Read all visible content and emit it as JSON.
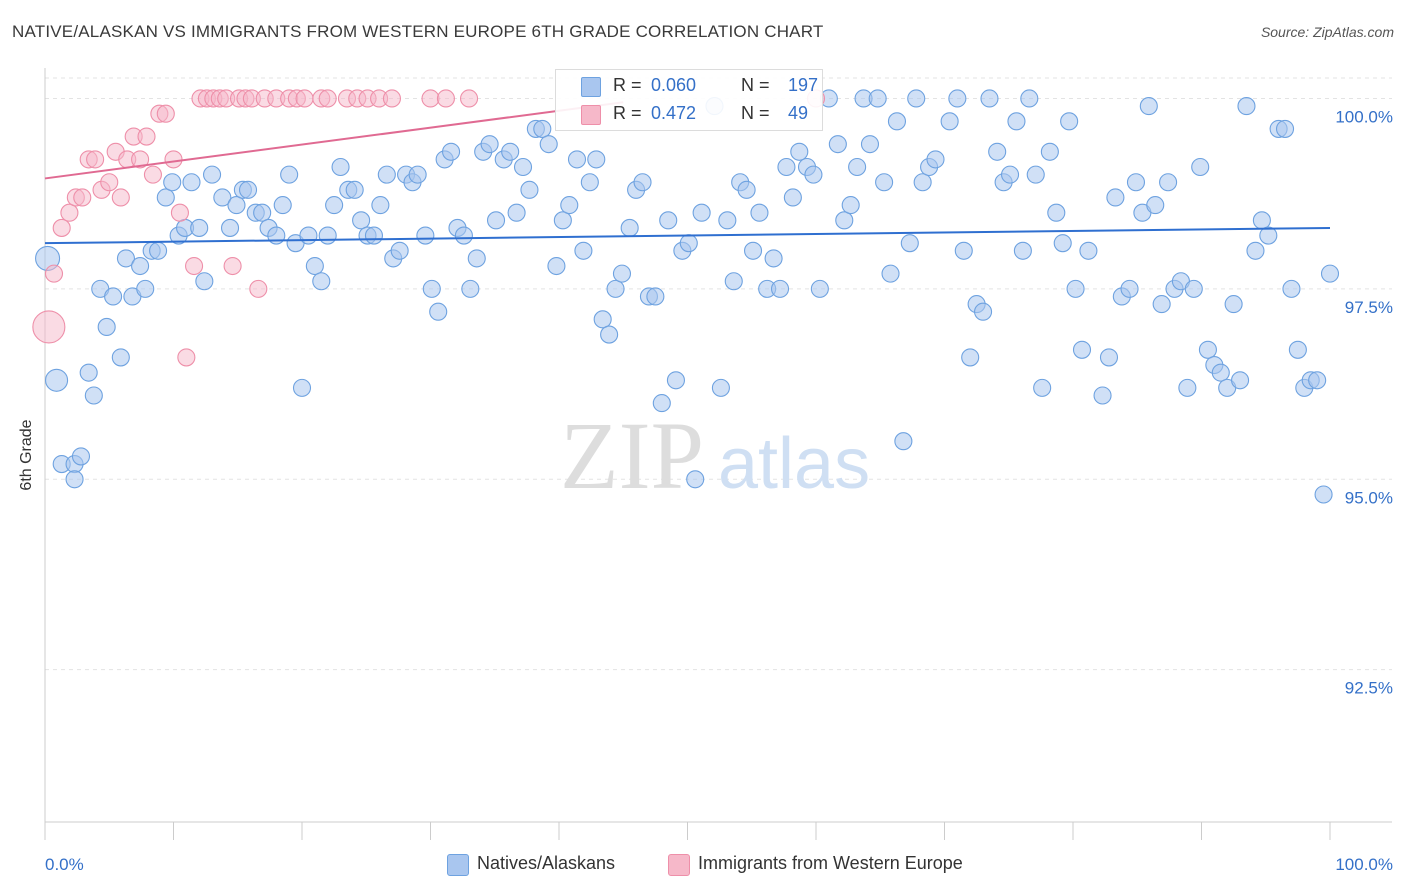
{
  "header": {
    "title": "NATIVE/ALASKAN VS IMMIGRANTS FROM WESTERN EUROPE 6TH GRADE CORRELATION CHART",
    "source": "Source: ZipAtlas.com"
  },
  "watermark": {
    "zip": "ZIP",
    "atlas": "atlas"
  },
  "legend_top": {
    "rows": [
      {
        "r_label": "R =",
        "r_value": "0.060",
        "n_label": "N =",
        "n_value": "197",
        "color": "#a9c6ef"
      },
      {
        "r_label": "R =",
        "r_value": "0.472",
        "n_label": "N =",
        "n_value": "49",
        "color": "#f6b8c9"
      }
    ]
  },
  "chart_data": {
    "type": "scatter",
    "title": "NATIVE/ALASKAN VS IMMIGRANTS FROM WESTERN EUROPE 6TH GRADE CORRELATION CHART",
    "xlabel": "",
    "ylabel": "6th Grade",
    "xlim": [
      0,
      100
    ],
    "ylim": [
      90.5,
      100.4
    ],
    "x_tick_labels": [
      "0.0%",
      "100.0%"
    ],
    "y_ticks": [
      92.5,
      95.0,
      97.5,
      100.0
    ],
    "y_tick_labels": [
      "92.5%",
      "95.0%",
      "97.5%",
      "100.0%"
    ],
    "grid": true,
    "legend_position": "bottom",
    "series": [
      {
        "name": "Natives/Alaskans",
        "color": "#6ea2e0",
        "fill": "#a9c6ef",
        "trend": {
          "x": [
            0,
            100
          ],
          "y": [
            98.1,
            98.3
          ],
          "color": "#2f6fd0"
        },
        "points": [
          [
            0.2,
            97.9
          ],
          [
            0.9,
            96.3
          ],
          [
            1.3,
            95.2
          ],
          [
            2.3,
            95.2
          ],
          [
            2.8,
            95.3
          ],
          [
            2.3,
            95.0
          ],
          [
            3.4,
            96.4
          ],
          [
            3.8,
            96.1
          ],
          [
            4.3,
            97.5
          ],
          [
            4.8,
            97.0
          ],
          [
            5.3,
            97.4
          ],
          [
            5.9,
            96.6
          ],
          [
            6.3,
            97.9
          ],
          [
            6.8,
            97.4
          ],
          [
            7.4,
            97.8
          ],
          [
            7.8,
            97.5
          ],
          [
            8.3,
            98.0
          ],
          [
            8.8,
            98.0
          ],
          [
            9.4,
            98.7
          ],
          [
            9.9,
            98.9
          ],
          [
            10.4,
            98.2
          ],
          [
            10.9,
            98.3
          ],
          [
            11.4,
            98.9
          ],
          [
            12.0,
            98.3
          ],
          [
            12.4,
            97.6
          ],
          [
            13.0,
            99.0
          ],
          [
            13.8,
            98.7
          ],
          [
            14.4,
            98.3
          ],
          [
            14.9,
            98.6
          ],
          [
            15.4,
            98.8
          ],
          [
            15.8,
            98.8
          ],
          [
            16.4,
            98.5
          ],
          [
            16.9,
            98.5
          ],
          [
            17.4,
            98.3
          ],
          [
            18.0,
            98.2
          ],
          [
            18.5,
            98.6
          ],
          [
            19.0,
            99.0
          ],
          [
            19.5,
            98.1
          ],
          [
            20.0,
            96.2
          ],
          [
            20.5,
            98.2
          ],
          [
            21.0,
            97.8
          ],
          [
            21.5,
            97.6
          ],
          [
            22.0,
            98.2
          ],
          [
            22.5,
            98.6
          ],
          [
            23.0,
            99.1
          ],
          [
            23.6,
            98.8
          ],
          [
            24.1,
            98.8
          ],
          [
            24.6,
            98.4
          ],
          [
            25.1,
            98.2
          ],
          [
            25.6,
            98.2
          ],
          [
            26.1,
            98.6
          ],
          [
            26.6,
            99.0
          ],
          [
            27.1,
            97.9
          ],
          [
            27.6,
            98.0
          ],
          [
            28.1,
            99.0
          ],
          [
            28.6,
            98.9
          ],
          [
            29.0,
            99.0
          ],
          [
            29.6,
            98.2
          ],
          [
            30.1,
            97.5
          ],
          [
            30.6,
            97.2
          ],
          [
            31.1,
            99.2
          ],
          [
            31.6,
            99.3
          ],
          [
            32.1,
            98.3
          ],
          [
            32.6,
            98.2
          ],
          [
            33.1,
            97.5
          ],
          [
            33.6,
            97.9
          ],
          [
            34.1,
            99.3
          ],
          [
            34.6,
            99.4
          ],
          [
            35.1,
            98.4
          ],
          [
            35.7,
            99.2
          ],
          [
            36.2,
            99.3
          ],
          [
            36.7,
            98.5
          ],
          [
            37.2,
            99.1
          ],
          [
            37.7,
            98.8
          ],
          [
            38.2,
            99.6
          ],
          [
            38.7,
            99.6
          ],
          [
            39.2,
            99.4
          ],
          [
            39.8,
            97.8
          ],
          [
            40.3,
            98.4
          ],
          [
            40.8,
            98.6
          ],
          [
            41.4,
            99.2
          ],
          [
            41.9,
            98.0
          ],
          [
            42.4,
            98.9
          ],
          [
            42.9,
            99.2
          ],
          [
            43.4,
            97.1
          ],
          [
            43.9,
            96.9
          ],
          [
            44.4,
            97.5
          ],
          [
            44.9,
            97.7
          ],
          [
            45.5,
            98.3
          ],
          [
            46.0,
            98.8
          ],
          [
            46.5,
            98.9
          ],
          [
            47.0,
            97.4
          ],
          [
            47.5,
            97.4
          ],
          [
            48.0,
            96.0
          ],
          [
            48.5,
            98.4
          ],
          [
            49.1,
            96.3
          ],
          [
            49.6,
            98.0
          ],
          [
            50.1,
            98.1
          ],
          [
            50.6,
            95.0
          ],
          [
            51.1,
            98.5
          ],
          [
            52.1,
            99.9
          ],
          [
            52.6,
            96.2
          ],
          [
            53.1,
            98.4
          ],
          [
            53.6,
            97.6
          ],
          [
            54.1,
            98.9
          ],
          [
            54.6,
            98.8
          ],
          [
            55.1,
            98.0
          ],
          [
            55.6,
            98.5
          ],
          [
            56.2,
            97.5
          ],
          [
            56.7,
            97.9
          ],
          [
            57.2,
            97.5
          ],
          [
            57.7,
            99.1
          ],
          [
            58.2,
            98.7
          ],
          [
            58.7,
            99.3
          ],
          [
            59.3,
            99.1
          ],
          [
            59.8,
            99.0
          ],
          [
            60.3,
            97.5
          ],
          [
            61.0,
            100.0
          ],
          [
            61.7,
            99.4
          ],
          [
            62.2,
            98.4
          ],
          [
            62.7,
            98.6
          ],
          [
            63.2,
            99.1
          ],
          [
            63.7,
            100.0
          ],
          [
            64.2,
            99.4
          ],
          [
            64.8,
            100.0
          ],
          [
            65.3,
            98.9
          ],
          [
            65.8,
            97.7
          ],
          [
            66.3,
            99.7
          ],
          [
            66.8,
            95.5
          ],
          [
            67.3,
            98.1
          ],
          [
            67.8,
            100.0
          ],
          [
            68.3,
            98.9
          ],
          [
            68.8,
            99.1
          ],
          [
            69.3,
            99.2
          ],
          [
            70.4,
            99.7
          ],
          [
            71.0,
            100.0
          ],
          [
            71.5,
            98.0
          ],
          [
            72.0,
            96.6
          ],
          [
            72.5,
            97.3
          ],
          [
            73.0,
            97.2
          ],
          [
            73.5,
            100.0
          ],
          [
            74.1,
            99.3
          ],
          [
            74.6,
            98.9
          ],
          [
            75.1,
            99.0
          ],
          [
            75.6,
            99.7
          ],
          [
            76.1,
            98.0
          ],
          [
            76.6,
            100.0
          ],
          [
            77.1,
            99.0
          ],
          [
            77.6,
            96.2
          ],
          [
            78.2,
            99.3
          ],
          [
            78.7,
            98.5
          ],
          [
            79.2,
            98.1
          ],
          [
            79.7,
            99.7
          ],
          [
            80.2,
            97.5
          ],
          [
            80.7,
            96.7
          ],
          [
            81.2,
            98.0
          ],
          [
            82.3,
            96.1
          ],
          [
            82.8,
            96.6
          ],
          [
            83.3,
            98.7
          ],
          [
            83.8,
            97.4
          ],
          [
            84.4,
            97.5
          ],
          [
            84.9,
            98.9
          ],
          [
            85.4,
            98.5
          ],
          [
            85.9,
            99.9
          ],
          [
            86.4,
            98.6
          ],
          [
            86.9,
            97.3
          ],
          [
            87.4,
            98.9
          ],
          [
            87.9,
            97.5
          ],
          [
            88.4,
            97.6
          ],
          [
            88.9,
            96.2
          ],
          [
            89.4,
            97.5
          ],
          [
            89.9,
            99.1
          ],
          [
            90.5,
            96.7
          ],
          [
            91.0,
            96.5
          ],
          [
            91.5,
            96.4
          ],
          [
            92.0,
            96.2
          ],
          [
            92.5,
            97.3
          ],
          [
            93.0,
            96.3
          ],
          [
            93.5,
            99.9
          ],
          [
            94.2,
            98.0
          ],
          [
            94.7,
            98.4
          ],
          [
            95.2,
            98.2
          ],
          [
            96.0,
            99.6
          ],
          [
            96.5,
            99.6
          ],
          [
            97.0,
            97.5
          ],
          [
            97.5,
            96.7
          ],
          [
            98.0,
            96.2
          ],
          [
            98.5,
            96.3
          ],
          [
            99.0,
            96.3
          ],
          [
            99.5,
            94.8
          ],
          [
            100.0,
            97.7
          ]
        ]
      },
      {
        "name": "Immigrants from Western Europe",
        "color": "#ee8fa9",
        "fill": "#f6b8c9",
        "trend": {
          "x": [
            0,
            45
          ],
          "y": [
            98.95,
            99.95
          ],
          "color": "#e06a92"
        },
        "points": [
          [
            0.3,
            97.0
          ],
          [
            0.7,
            97.7
          ],
          [
            1.3,
            98.3
          ],
          [
            1.9,
            98.5
          ],
          [
            2.4,
            98.7
          ],
          [
            2.9,
            98.7
          ],
          [
            3.4,
            99.2
          ],
          [
            3.9,
            99.2
          ],
          [
            4.4,
            98.8
          ],
          [
            5.0,
            98.9
          ],
          [
            5.5,
            99.3
          ],
          [
            5.9,
            98.7
          ],
          [
            6.4,
            99.2
          ],
          [
            6.9,
            99.5
          ],
          [
            7.4,
            99.2
          ],
          [
            7.9,
            99.5
          ],
          [
            8.4,
            99.0
          ],
          [
            8.9,
            99.8
          ],
          [
            9.4,
            99.8
          ],
          [
            10.0,
            99.2
          ],
          [
            10.5,
            98.5
          ],
          [
            11.0,
            96.6
          ],
          [
            11.6,
            97.8
          ],
          [
            12.1,
            100.0
          ],
          [
            12.6,
            100.0
          ],
          [
            13.1,
            100.0
          ],
          [
            13.6,
            100.0
          ],
          [
            14.1,
            100.0
          ],
          [
            14.6,
            97.8
          ],
          [
            15.1,
            100.0
          ],
          [
            15.6,
            100.0
          ],
          [
            16.1,
            100.0
          ],
          [
            16.6,
            97.5
          ],
          [
            17.1,
            100.0
          ],
          [
            18.0,
            100.0
          ],
          [
            19.0,
            100.0
          ],
          [
            19.6,
            100.0
          ],
          [
            20.2,
            100.0
          ],
          [
            21.5,
            100.0
          ],
          [
            22.0,
            100.0
          ],
          [
            23.5,
            100.0
          ],
          [
            24.3,
            100.0
          ],
          [
            25.1,
            100.0
          ],
          [
            26.0,
            100.0
          ],
          [
            27.0,
            100.0
          ],
          [
            30.0,
            100.0
          ],
          [
            31.2,
            100.0
          ],
          [
            33.0,
            100.0
          ],
          [
            60.0,
            100.0
          ]
        ]
      }
    ]
  },
  "bottom_legend": {
    "items": [
      {
        "label": "Natives/Alaskans",
        "color": "#a9c6ef",
        "border": "#6ea2e0"
      },
      {
        "label": "Immigrants from Western Europe",
        "color": "#f6b8c9",
        "border": "#ee8fa9"
      }
    ]
  }
}
